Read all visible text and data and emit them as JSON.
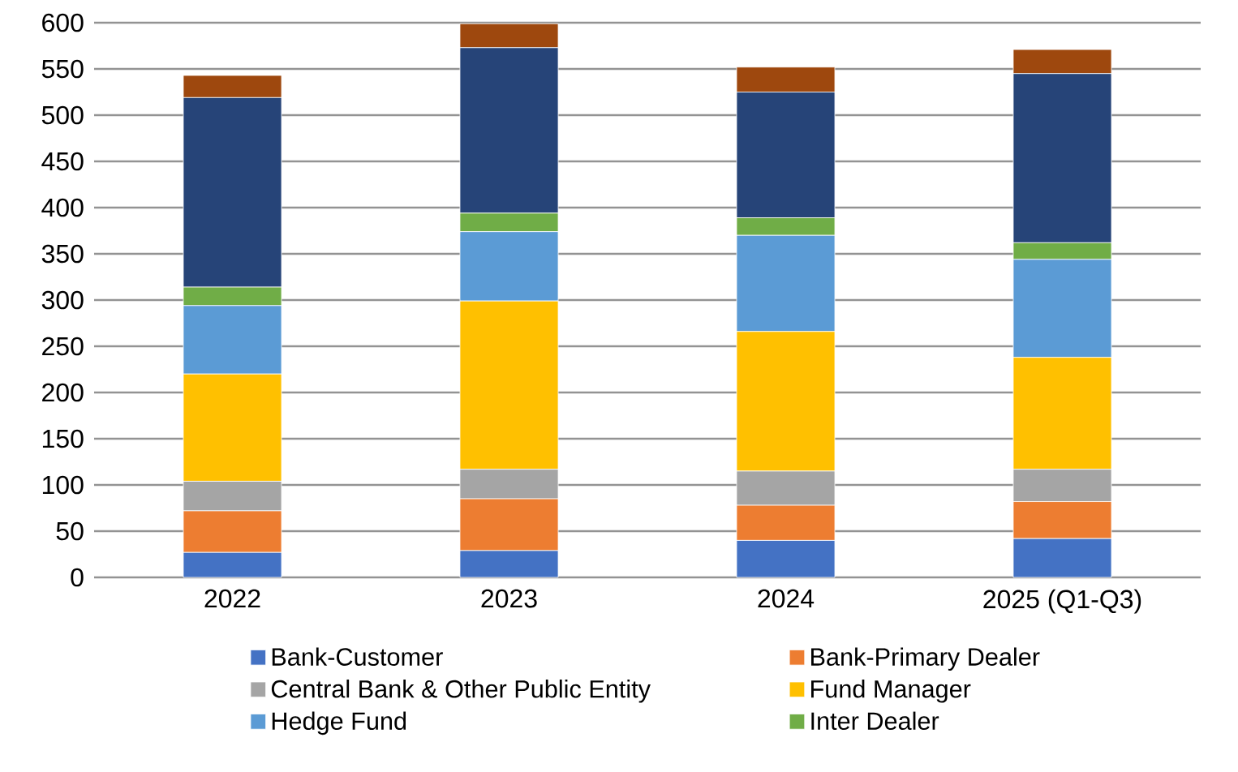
{
  "chart_data": {
    "type": "bar",
    "stacked": true,
    "categories": [
      "2022",
      "2023",
      "2024",
      "2025 (Q1-Q3)"
    ],
    "series": [
      {
        "name": "Bank-Customer",
        "color": "#4472c4",
        "values": [
          27,
          29,
          40,
          42
        ]
      },
      {
        "name": "Bank-Primary Dealer",
        "color": "#ed7d31",
        "values": [
          45,
          56,
          38,
          40
        ]
      },
      {
        "name": "Central Bank & Other Public Entity",
        "color": "#a5a5a5",
        "values": [
          32,
          32,
          37,
          35
        ]
      },
      {
        "name": "Fund Manager",
        "color": "#ffc000",
        "values": [
          116,
          182,
          151,
          121
        ]
      },
      {
        "name": "Hedge Fund",
        "color": "#5b9bd5",
        "values": [
          74,
          75,
          104,
          106
        ]
      },
      {
        "name": "Inter Dealer",
        "color": "#70ad47",
        "values": [
          20,
          20,
          19,
          18
        ]
      },
      {
        "color": "#264478",
        "values": [
          205,
          179,
          136,
          183
        ]
      },
      {
        "color": "#9e480e",
        "values": [
          24,
          26,
          27,
          26
        ]
      }
    ],
    "ylim": [
      0,
      600
    ],
    "yticks": [
      0,
      50,
      100,
      150,
      200,
      250,
      300,
      350,
      400,
      450,
      500,
      550,
      600
    ],
    "grid": "y",
    "legend": "bottom"
  }
}
